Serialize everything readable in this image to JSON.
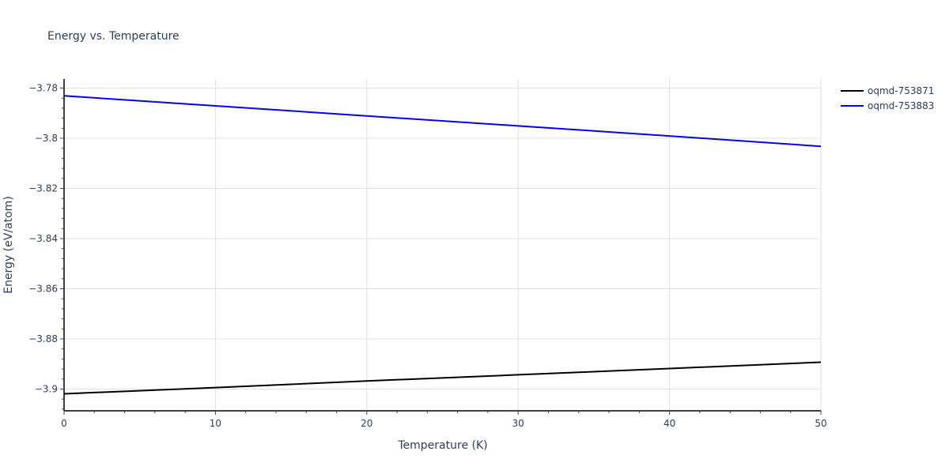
{
  "chart_data": {
    "type": "line",
    "title": "Energy vs. Temperature",
    "xlabel": "Temperature (K)",
    "ylabel": "Energy (eV/atom)",
    "xlim": [
      0,
      50
    ],
    "ylim": [
      -3.9085,
      -3.7765
    ],
    "x_ticks": [
      0,
      10,
      20,
      30,
      40,
      50
    ],
    "x_tick_labels": [
      "0",
      "10",
      "20",
      "30",
      "40",
      "50"
    ],
    "y_ticks": [
      -3.78,
      -3.8,
      -3.82,
      -3.84,
      -3.86,
      -3.88,
      -3.9
    ],
    "y_tick_labels": [
      "−3.78",
      "−3.8",
      "−3.82",
      "−3.84",
      "−3.86",
      "−3.88",
      "−3.9"
    ],
    "grid": true,
    "legend_position": "top-right-outside",
    "series": [
      {
        "name": "oqmd-753871",
        "color": "#000000",
        "x": [
          0,
          10,
          20,
          30,
          40,
          50
        ],
        "values": [
          -3.9019,
          -3.8994,
          -3.8968,
          -3.8943,
          -3.8918,
          -3.8893
        ]
      },
      {
        "name": "oqmd-753883",
        "color": "#0000ff",
        "x": [
          0,
          10,
          20,
          30,
          40,
          50
        ],
        "values": [
          -3.7831,
          -3.7871,
          -3.7911,
          -3.7951,
          -3.7991,
          -3.8032
        ]
      }
    ]
  }
}
